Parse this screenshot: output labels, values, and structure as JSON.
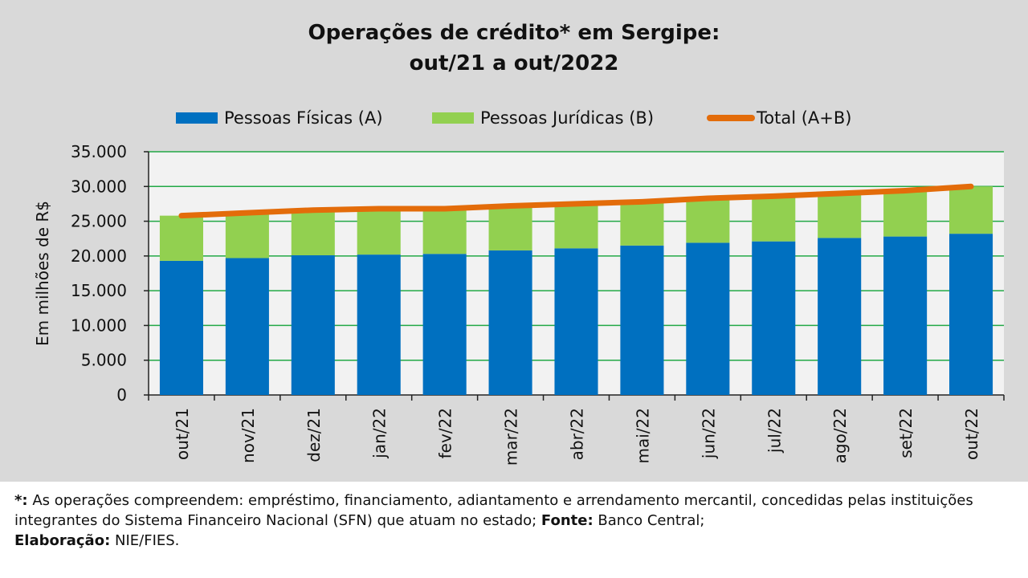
{
  "colors": {
    "panel": "#d9d9d9",
    "plot_bg": "#f2f2f2",
    "grid": "#22a846",
    "pf": "#0070c0",
    "pj": "#92d050",
    "total": "#e36c0a"
  },
  "chart_data": {
    "type": "bar",
    "stacked": true,
    "title_line1": "Operações de crédito* em Sergipe:",
    "title_line2": "out/21 a out/2022",
    "xlabel": "",
    "ylabel": "Em milhões de R$",
    "ylim": [
      0,
      35000
    ],
    "yticks": [
      "0",
      "5.000",
      "10.000",
      "15.000",
      "20.000",
      "25.000",
      "30.000",
      "35.000"
    ],
    "grid": true,
    "legend_position": "top",
    "categories": [
      "out/21",
      "nov/21",
      "dez/21",
      "jan/22",
      "fev/22",
      "mar/22",
      "abr/22",
      "mai/22",
      "jun/22",
      "jul/22",
      "ago/22",
      "set/22",
      "out/22"
    ],
    "series": [
      {
        "name": "Pessoas Físicas (A)",
        "type": "bar",
        "values": [
          19300,
          19700,
          20100,
          20200,
          20300,
          20800,
          21100,
          21500,
          21900,
          22100,
          22600,
          22800,
          23200
        ]
      },
      {
        "name": "Pessoas Jurídicas (B)",
        "type": "bar",
        "values": [
          6500,
          6500,
          6500,
          6600,
          6500,
          6400,
          6400,
          6300,
          6400,
          6500,
          6400,
          6600,
          6800
        ]
      },
      {
        "name": "Total (A+B)",
        "type": "line",
        "values": [
          25800,
          26200,
          26600,
          26800,
          26800,
          27200,
          27500,
          27800,
          28300,
          28600,
          29000,
          29400,
          30000
        ]
      }
    ]
  },
  "footnote": {
    "star_label": "*:",
    "text1": " As operações compreendem: empréstimo, financiamento, adiantamento e arrendamento mercantil, concedidas pelas instituições integrantes do Sistema Financeiro Nacional (SFN) que atuam no estado; ",
    "fonte_label": "Fonte:",
    "fonte_value": " Banco Central;",
    "elab_label": "Elaboração:",
    "elab_value": " NIE/FIES."
  }
}
